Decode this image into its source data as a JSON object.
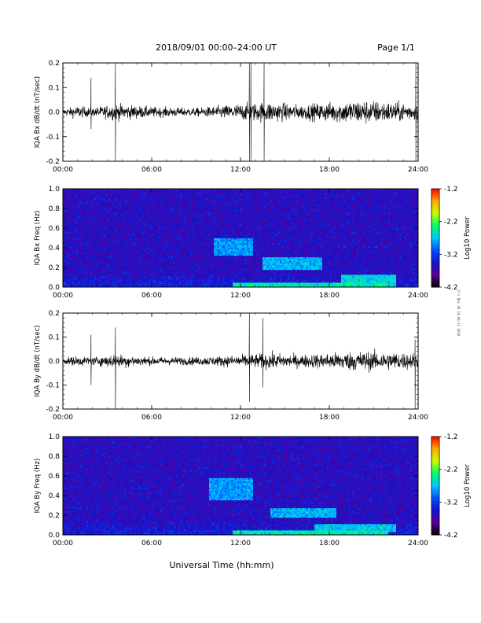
{
  "header": {
    "title": "2018/09/01   00:00–24:00 UT",
    "page": "Page 1/1"
  },
  "footer_text": "Universal Time (hh:mm)",
  "side_note": "Fri Dec 28 14:04:11 2018",
  "colors": {
    "trace": "#000000",
    "colormap": [
      "#000000",
      "#5a0099",
      "#1414cc",
      "#0050ff",
      "#00c8ff",
      "#00ff66",
      "#ccff00",
      "#ffaa00",
      "#ff0000"
    ]
  },
  "chart_data": [
    {
      "type": "line",
      "ylabel": "IQA Bx dB/dt (nT/sec)",
      "ylim": [
        -0.2,
        0.2
      ],
      "yticks": [
        "0.2",
        "0.1",
        "0.0",
        "-0.1",
        "-0.2"
      ],
      "xticks": [
        "00:00",
        "06:00",
        "12:00",
        "18:00",
        "24:00"
      ],
      "xlim_hours": [
        0,
        24
      ],
      "noise_envelope": [
        {
          "t": 0.0,
          "amp": 0.015
        },
        {
          "t": 1.0,
          "amp": 0.03
        },
        {
          "t": 2.0,
          "amp": 0.02
        },
        {
          "t": 3.5,
          "amp": 0.04
        },
        {
          "t": 6.0,
          "amp": 0.025
        },
        {
          "t": 9.0,
          "amp": 0.02
        },
        {
          "t": 12.0,
          "amp": 0.04
        },
        {
          "t": 14.0,
          "amp": 0.05
        },
        {
          "t": 16.0,
          "amp": 0.035
        },
        {
          "t": 20.0,
          "amp": 0.06
        },
        {
          "t": 22.0,
          "amp": 0.05
        },
        {
          "t": 24.0,
          "amp": 0.04
        }
      ],
      "spikes": [
        {
          "t": 1.9,
          "min": -0.07,
          "max": 0.14
        },
        {
          "t": 3.55,
          "min": -0.2,
          "max": 0.2
        },
        {
          "t": 12.6,
          "min": -0.2,
          "max": 0.2
        },
        {
          "t": 12.7,
          "min": -0.2,
          "max": 0.2
        },
        {
          "t": 13.6,
          "min": -0.2,
          "max": 0.2
        },
        {
          "t": 23.85,
          "min": -0.2,
          "max": 0.2
        }
      ]
    },
    {
      "type": "heatmap",
      "ylabel": "IQA Bx Freq (Hz)",
      "ylim": [
        0.0,
        1.0
      ],
      "yticks": [
        "1.0",
        "0.8",
        "0.6",
        "0.4",
        "0.2",
        "0.0"
      ],
      "xticks": [
        "00:00",
        "06:00",
        "12:00",
        "18:00",
        "24:00"
      ],
      "xlim_hours": [
        0,
        24
      ],
      "colorbar": {
        "label": "Log10 Power",
        "ticks": [
          "-1.2",
          "-2.2",
          "-3.2",
          "-4.2"
        ],
        "range": [
          -4.2,
          -1.2
        ]
      },
      "features": [
        {
          "t0": 10.2,
          "t1": 12.8,
          "f0": 0.32,
          "f1": 0.5,
          "level": -2.7
        },
        {
          "t0": 13.5,
          "t1": 17.5,
          "f0": 0.17,
          "f1": 0.3,
          "level": -2.6
        },
        {
          "t0": 18.8,
          "t1": 22.5,
          "f0": 0.0,
          "f1": 0.13,
          "level": -2.4
        },
        {
          "t0": 11.5,
          "t1": 22.0,
          "f0": 0.0,
          "f1": 0.05,
          "level": -2.3
        }
      ]
    },
    {
      "type": "line",
      "ylabel": "IQA By dB/dt (nT/sec)",
      "ylim": [
        -0.2,
        0.2
      ],
      "yticks": [
        "0.2",
        "0.1",
        "0.0",
        "-0.1",
        "-0.2"
      ],
      "xticks": [
        "00:00",
        "06:00",
        "12:00",
        "18:00",
        "24:00"
      ],
      "xlim_hours": [
        0,
        24
      ],
      "noise_envelope": [
        {
          "t": 0.0,
          "amp": 0.015
        },
        {
          "t": 1.0,
          "amp": 0.025
        },
        {
          "t": 2.0,
          "amp": 0.02
        },
        {
          "t": 3.5,
          "amp": 0.035
        },
        {
          "t": 6.0,
          "amp": 0.02
        },
        {
          "t": 9.0,
          "amp": 0.02
        },
        {
          "t": 12.0,
          "amp": 0.03
        },
        {
          "t": 14.0,
          "amp": 0.04
        },
        {
          "t": 16.0,
          "amp": 0.03
        },
        {
          "t": 20.0,
          "amp": 0.05
        },
        {
          "t": 22.0,
          "amp": 0.045
        },
        {
          "t": 24.0,
          "amp": 0.04
        }
      ],
      "spikes": [
        {
          "t": 1.9,
          "min": -0.1,
          "max": 0.11
        },
        {
          "t": 3.55,
          "min": -0.2,
          "max": 0.14
        },
        {
          "t": 12.6,
          "min": -0.17,
          "max": 0.2
        },
        {
          "t": 13.5,
          "min": -0.11,
          "max": 0.18
        },
        {
          "t": 23.8,
          "min": -0.2,
          "max": 0.09
        }
      ]
    },
    {
      "type": "heatmap",
      "ylabel": "IQA By Freq (Hz)",
      "ylim": [
        0.0,
        1.0
      ],
      "yticks": [
        "1.0",
        "0.8",
        "0.6",
        "0.4",
        "0.2",
        "0.0"
      ],
      "xticks": [
        "00:00",
        "06:00",
        "12:00",
        "18:00",
        "24:00"
      ],
      "xlim_hours": [
        0,
        24
      ],
      "colorbar": {
        "label": "Log10 Power",
        "ticks": [
          "-1.2",
          "-2.2",
          "-3.2",
          "-4.2"
        ],
        "range": [
          -4.2,
          -1.2
        ]
      },
      "features": [
        {
          "t0": 9.9,
          "t1": 12.9,
          "f0": 0.35,
          "f1": 0.58,
          "level": -2.7
        },
        {
          "t0": 14.0,
          "t1": 18.5,
          "f0": 0.17,
          "f1": 0.28,
          "level": -2.6
        },
        {
          "t0": 17.0,
          "t1": 22.5,
          "f0": 0.03,
          "f1": 0.12,
          "level": -2.5
        },
        {
          "t0": 11.5,
          "t1": 22.0,
          "f0": 0.0,
          "f1": 0.05,
          "level": -2.3
        }
      ]
    }
  ]
}
